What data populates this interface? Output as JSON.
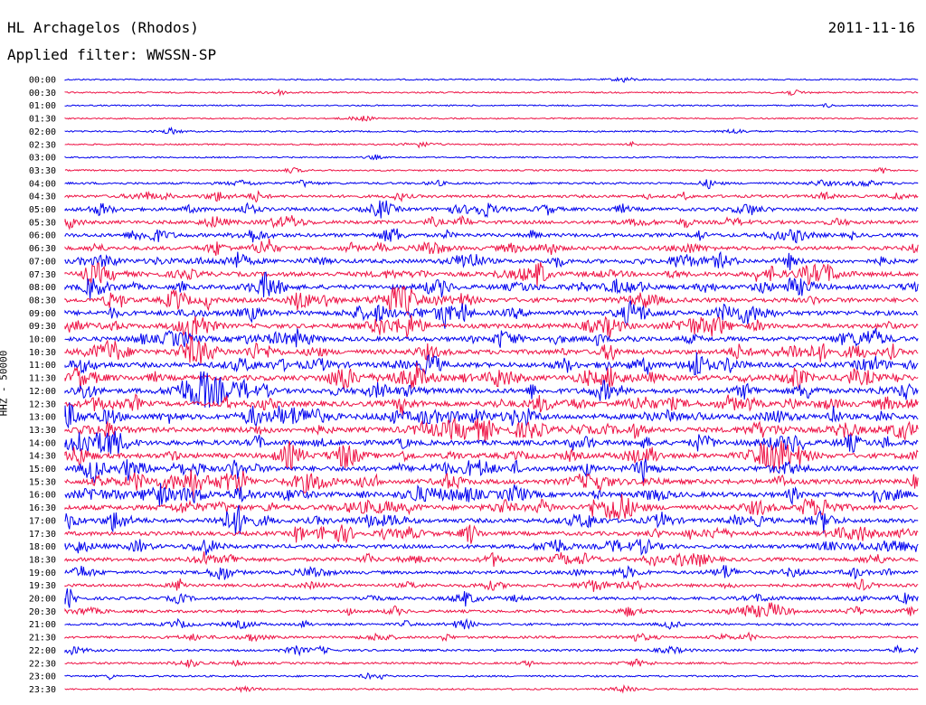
{
  "header": {
    "station": "HL Archagelos (Rhodos)",
    "date": "2011-11-16",
    "filter": "Applied filter: WWSSN-SP"
  },
  "chart_data": {
    "type": "line",
    "ylabel": "HHZ - 50000",
    "series_colors": [
      "#0000ee",
      "#ee1144"
    ],
    "rows": [
      "00:00",
      "00:30",
      "01:00",
      "01:30",
      "02:00",
      "02:30",
      "03:00",
      "03:30",
      "04:00",
      "04:30",
      "05:00",
      "05:30",
      "06:00",
      "06:30",
      "07:00",
      "07:30",
      "08:00",
      "08:30",
      "09:00",
      "09:30",
      "10:00",
      "10:30",
      "11:00",
      "11:30",
      "12:00",
      "12:30",
      "13:00",
      "13:30",
      "14:00",
      "14:30",
      "15:00",
      "15:30",
      "16:00",
      "16:30",
      "17:00",
      "17:30",
      "18:00",
      "18:30",
      "19:00",
      "19:30",
      "20:00",
      "20:30",
      "21:00",
      "21:30",
      "22:00",
      "22:30",
      "23:00",
      "23:30"
    ],
    "activity": [
      0.05,
      0.08,
      0.05,
      0.05,
      0.1,
      0.08,
      0.06,
      0.1,
      0.25,
      0.4,
      0.55,
      0.55,
      0.6,
      0.6,
      0.7,
      0.8,
      0.8,
      0.8,
      0.85,
      0.8,
      0.8,
      0.85,
      0.9,
      0.95,
      0.9,
      0.95,
      0.95,
      0.9,
      0.9,
      0.9,
      0.9,
      0.85,
      0.9,
      0.85,
      0.75,
      0.7,
      0.65,
      0.6,
      0.5,
      0.45,
      0.45,
      0.4,
      0.3,
      0.3,
      0.25,
      0.2,
      0.15,
      0.1
    ]
  }
}
